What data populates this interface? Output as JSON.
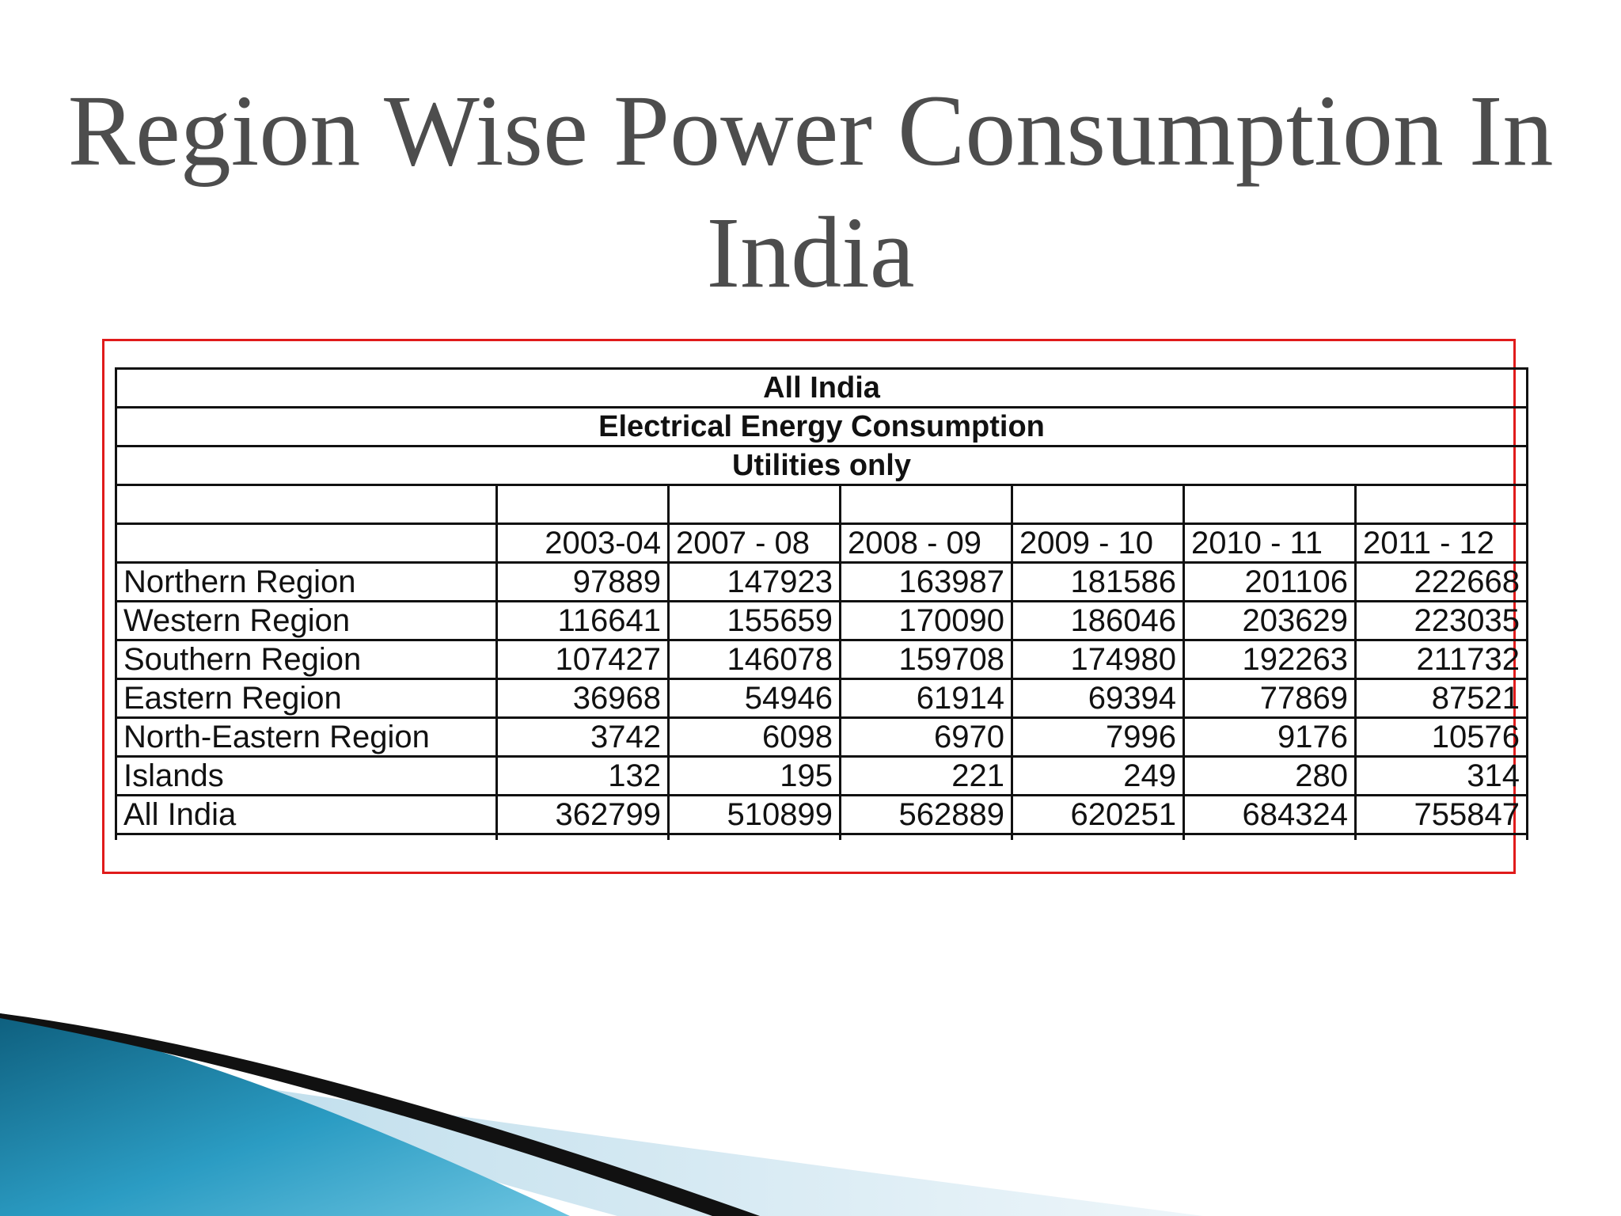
{
  "slide": {
    "title": "Region Wise Power Consumption In India"
  },
  "table": {
    "heading_lines": [
      "All India",
      "Electrical Energy Consumption",
      "Utilities only"
    ],
    "years": [
      "2003-04",
      "2007 - 08",
      "2008 - 09",
      "2009 - 10",
      "2010 - 11",
      "2011 - 12"
    ],
    "rows": [
      {
        "region": "Northern Region",
        "values": [
          "97889",
          "147923",
          "163987",
          "181586",
          "201106",
          "222668"
        ]
      },
      {
        "region": "Western Region",
        "values": [
          "116641",
          "155659",
          "170090",
          "186046",
          "203629",
          "223035"
        ]
      },
      {
        "region": "Southern Region",
        "values": [
          "107427",
          "146078",
          "159708",
          "174980",
          "192263",
          "211732"
        ]
      },
      {
        "region": "Eastern Region",
        "values": [
          "36968",
          "54946",
          "61914",
          "69394",
          "77869",
          "87521"
        ]
      },
      {
        "region": "North-Eastern Region",
        "values": [
          "3742",
          "6098",
          "6970",
          "7996",
          "9176",
          "10576"
        ]
      },
      {
        "region": "Islands",
        "values": [
          "132",
          "195",
          "221",
          "249",
          "280",
          "314"
        ]
      },
      {
        "region": "All India",
        "values": [
          "362799",
          "510899",
          "562889",
          "620251",
          "684324",
          "755847"
        ]
      }
    ]
  },
  "colors": {
    "title": "#4d4d4d",
    "frame_border": "#e01b1b",
    "decor_teal": "#1b86a8",
    "decor_light": "#d7e9f2"
  }
}
